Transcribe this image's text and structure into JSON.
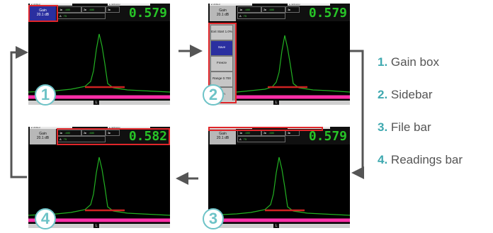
{
  "legend": [
    {
      "num": "1.",
      "label": "Gain box"
    },
    {
      "num": "2.",
      "label": "Sidebar"
    },
    {
      "num": "3.",
      "label": "File bar"
    },
    {
      "num": "4.",
      "label": "Readings bar"
    }
  ],
  "steps": [
    {
      "badge": "1",
      "reading": "0.579"
    },
    {
      "badge": "2",
      "reading": "0.579"
    },
    {
      "badge": "3",
      "reading": "0.579"
    },
    {
      "badge": "4",
      "reading": "0.582"
    }
  ],
  "gain": {
    "label": "Gain",
    "value": "20.1 dB"
  },
  "file_bar": {
    "left": "▸ Untitled",
    "right": "▸ calibration"
  },
  "readings_small": [
    {
      "tag": "1▸",
      "value": ".480"
    },
    {
      "tag": "2▸",
      "value": ".480"
    },
    {
      "tag": "3▸",
      "value": ".570"
    },
    {
      "tag": "A",
      "value": "75"
    }
  ],
  "sidebar_buttons": [
    {
      "label": "Exit Start 1.0%",
      "selected": false
    },
    {
      "label": "Save",
      "selected": true
    },
    {
      "label": "Freeze",
      "selected": false
    },
    {
      "label": "Range 0.700",
      "selected": false
    },
    {
      "label": "Gain",
      "selected": false
    }
  ],
  "bottom_icon": "L",
  "colors": {
    "highlight": "#e0262a",
    "reading_green": "#27c427",
    "waveform_green": "#22b022",
    "gate_red": "#cc2222",
    "baseline_magenta": "#ff2fa8",
    "badge_teal": "#6dc3c7",
    "arrow_gray": "#555555"
  }
}
